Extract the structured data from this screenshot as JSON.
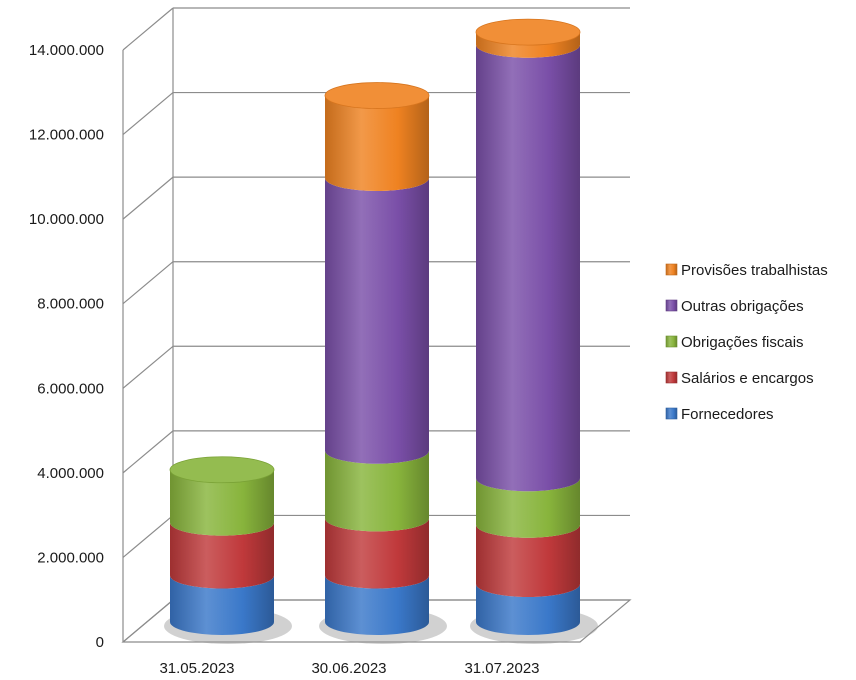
{
  "chart_data": {
    "type": "bar",
    "stacked": true,
    "style": "3d-cylinder",
    "categories": [
      "31.05.2023",
      "30.06.2023",
      "31.07.2023"
    ],
    "series": [
      {
        "name": "Fornecedores",
        "color": "#3a78c9",
        "values": [
          1100000,
          1100000,
          900000
        ]
      },
      {
        "name": "Salários e encargos",
        "color": "#c0393b",
        "values": [
          1250000,
          1350000,
          1400000
        ]
      },
      {
        "name": "Obrigações fiscais",
        "color": "#88b43c",
        "values": [
          1250000,
          1600000,
          1100000
        ]
      },
      {
        "name": "Outras obrigações",
        "color": "#7a4fa8",
        "values": [
          0,
          6450000,
          10250000
        ]
      },
      {
        "name": "Provisões trabalhistas",
        "color": "#ef8221",
        "values": [
          0,
          1950000,
          300000
        ]
      }
    ],
    "yticks": [
      "0",
      "2.000.000",
      "4.000.000",
      "6.000.000",
      "8.000.000",
      "10.000.000",
      "12.000.000",
      "14.000.000"
    ],
    "ylim": [
      0,
      14000000
    ],
    "ystep": 2000000,
    "grid": true,
    "legend_position": "right"
  }
}
